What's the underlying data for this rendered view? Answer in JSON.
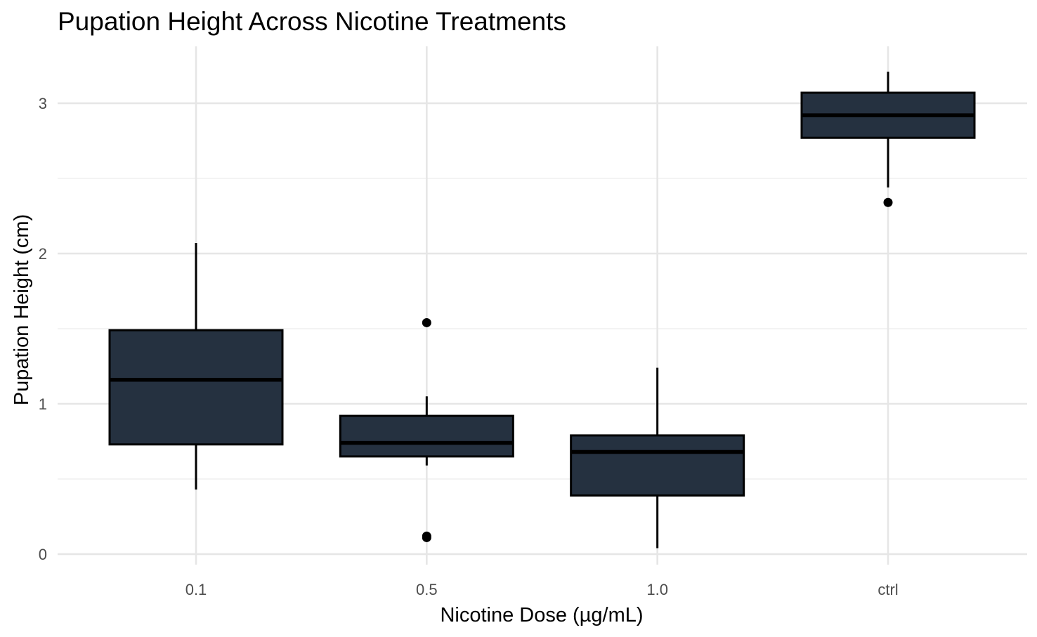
{
  "chart_data": {
    "type": "box",
    "title": "Pupation Height Across Nicotine Treatments",
    "xlabel": "Nicotine Dose (µg/mL)",
    "ylabel": "Pupation Height (cm)",
    "categories": [
      "0.1",
      "0.5",
      "1.0",
      "ctrl"
    ],
    "yticks": [
      0,
      1,
      2,
      3
    ],
    "ylim": [
      -0.05,
      3.25
    ],
    "grid": true,
    "fill_color": "#253140",
    "boxes": [
      {
        "category": "0.1",
        "whisker_low": 0.43,
        "q1": 0.73,
        "median": 1.16,
        "q3": 1.49,
        "whisker_high": 2.07,
        "outliers": []
      },
      {
        "category": "0.5",
        "whisker_low": 0.59,
        "q1": 0.65,
        "median": 0.74,
        "q3": 0.92,
        "whisker_high": 1.05,
        "outliers": [
          1.54,
          0.12,
          0.11
        ]
      },
      {
        "category": "1.0",
        "whisker_low": 0.04,
        "q1": 0.39,
        "median": 0.68,
        "q3": 0.79,
        "whisker_high": 1.24,
        "outliers": []
      },
      {
        "category": "ctrl",
        "whisker_low": 2.44,
        "q1": 2.77,
        "median": 2.92,
        "q3": 3.07,
        "whisker_high": 3.21,
        "outliers": [
          2.34
        ]
      }
    ]
  }
}
